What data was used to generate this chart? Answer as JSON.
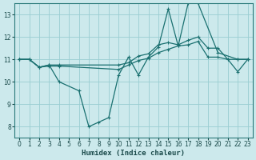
{
  "xlabel": "Humidex (Indice chaleur)",
  "bg_color": "#cce9ec",
  "grid_color": "#99cdd1",
  "line_color": "#1a7070",
  "xlim": [
    -0.5,
    23.5
  ],
  "ylim": [
    7.5,
    13.5
  ],
  "yticks": [
    8,
    9,
    10,
    11,
    12,
    13
  ],
  "xticks": [
    0,
    1,
    2,
    3,
    4,
    5,
    6,
    7,
    8,
    9,
    10,
    11,
    12,
    13,
    14,
    15,
    16,
    17,
    18,
    19,
    20,
    21,
    22,
    23
  ],
  "lines": [
    {
      "x": [
        0,
        1,
        2,
        3,
        4,
        6,
        7,
        8,
        9,
        10,
        11,
        12,
        13,
        14,
        15,
        16,
        17,
        18,
        20,
        22,
        23
      ],
      "y": [
        11.0,
        11.0,
        10.65,
        10.75,
        10.0,
        9.6,
        8.0,
        8.2,
        8.4,
        10.3,
        11.1,
        10.3,
        11.1,
        11.55,
        13.25,
        11.6,
        13.5,
        13.5,
        11.3,
        11.0,
        11.0
      ]
    },
    {
      "x": [
        0,
        1,
        2,
        3,
        4,
        10,
        11,
        12,
        13,
        14,
        15,
        16,
        17,
        18,
        19,
        20,
        21,
        22,
        23
      ],
      "y": [
        11.0,
        11.0,
        10.65,
        10.75,
        10.75,
        10.75,
        10.85,
        11.15,
        11.25,
        11.65,
        11.75,
        11.65,
        11.85,
        12.0,
        11.5,
        11.5,
        11.0,
        11.0,
        11.0
      ]
    },
    {
      "x": [
        0,
        1,
        2,
        3,
        4,
        10,
        11,
        12,
        13,
        14,
        15,
        16,
        17,
        18,
        19,
        20,
        21,
        22,
        23
      ],
      "y": [
        11.0,
        11.0,
        10.65,
        10.7,
        10.7,
        10.55,
        10.75,
        10.95,
        11.05,
        11.3,
        11.45,
        11.6,
        11.65,
        11.8,
        11.1,
        11.1,
        11.0,
        10.45,
        11.0
      ]
    }
  ],
  "tick_fontsize": 5.5,
  "xlabel_fontsize": 6.5
}
